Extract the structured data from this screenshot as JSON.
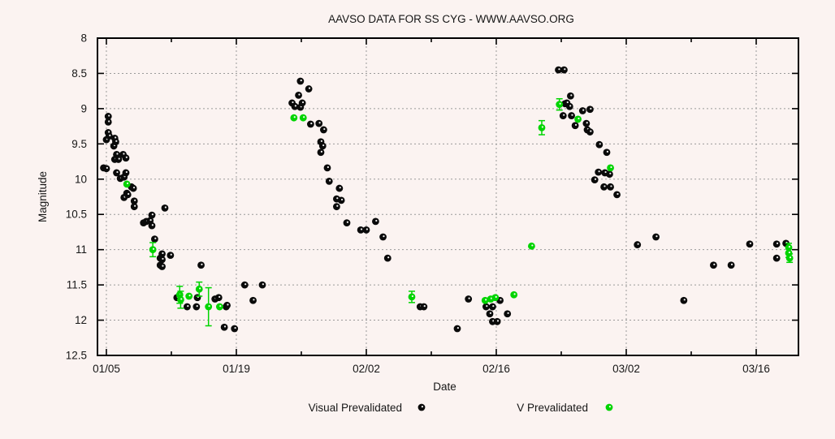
{
  "page": {
    "background": "#fbf3f1",
    "plot_border_color": "#000000",
    "grid_color": "#9a9a9a"
  },
  "chart_data": {
    "type": "scatter",
    "title": "AAVSO DATA FOR SS CYG - WWW.AAVSO.ORG",
    "xlabel": "Date",
    "ylabel": "Magnitude",
    "grid": true,
    "y_axis": {
      "min": 8,
      "max": 12.5,
      "step": 0.5,
      "inverted": true,
      "tick_labels": [
        "8",
        "8.5",
        "9",
        "9.5",
        "10",
        "10.5",
        "11",
        "11.5",
        "12",
        "12.5"
      ],
      "tick_values": [
        8,
        8.5,
        9,
        9.5,
        10,
        10.5,
        11,
        11.5,
        12,
        12.5
      ]
    },
    "x_axis": {
      "unit": "days since 01/05",
      "range_days": [
        -0.96,
        74.55
      ],
      "major_tick_days": [
        0,
        14,
        28,
        42,
        56,
        70
      ],
      "tick_labels": [
        "01/05",
        "01/19",
        "02/02",
        "02/16",
        "03/02",
        "03/16"
      ],
      "minor_tick_days": [
        7,
        21,
        35,
        49,
        63
      ]
    },
    "legend": {
      "position": "below-x-axis",
      "entries": [
        {
          "label": "Visual Prevalidated",
          "color": "#0a0a0a"
        },
        {
          "label": "V Prevalidated",
          "color": "#00d400"
        }
      ]
    },
    "series": [
      {
        "name": "Visual Prevalidated",
        "color": "#0a0a0a",
        "marker": "circle",
        "points_day_mag": [
          [
            -0.3,
            9.84
          ],
          [
            0.0,
            9.85
          ],
          [
            0.0,
            9.44
          ],
          [
            0.2,
            9.11
          ],
          [
            0.2,
            9.19
          ],
          [
            0.2,
            9.34
          ],
          [
            0.3,
            9.39
          ],
          [
            0.8,
            9.53
          ],
          [
            0.9,
            9.42
          ],
          [
            0.9,
            9.72
          ],
          [
            1.0,
            9.47
          ],
          [
            1.1,
            9.65
          ],
          [
            1.1,
            9.91
          ],
          [
            1.3,
            9.72
          ],
          [
            1.5,
            9.99
          ],
          [
            1.8,
            9.65
          ],
          [
            1.9,
            9.97
          ],
          [
            1.9,
            10.26
          ],
          [
            2.1,
            9.7
          ],
          [
            2.1,
            9.91
          ],
          [
            2.2,
            10.2
          ],
          [
            2.3,
            10.22
          ],
          [
            2.7,
            10.11
          ],
          [
            2.9,
            10.13
          ],
          [
            3.0,
            10.31
          ],
          [
            3.0,
            10.39
          ],
          [
            4.0,
            10.62
          ],
          [
            4.3,
            10.6
          ],
          [
            4.7,
            10.59
          ],
          [
            4.9,
            10.51
          ],
          [
            4.9,
            10.66
          ],
          [
            5.2,
            10.85
          ],
          [
            5.8,
            11.12
          ],
          [
            5.8,
            11.22
          ],
          [
            6.0,
            11.06
          ],
          [
            6.0,
            11.14
          ],
          [
            6.0,
            11.24
          ],
          [
            6.3,
            10.41
          ],
          [
            6.9,
            11.08
          ],
          [
            7.6,
            11.68
          ],
          [
            8.7,
            11.81
          ],
          [
            9.7,
            11.81
          ],
          [
            9.8,
            11.68
          ],
          [
            10.2,
            11.22
          ],
          [
            11.7,
            11.7
          ],
          [
            12.1,
            11.68
          ],
          [
            12.7,
            12.1
          ],
          [
            12.9,
            11.81
          ],
          [
            13.0,
            11.79
          ],
          [
            13.8,
            12.12
          ],
          [
            14.9,
            11.5
          ],
          [
            15.8,
            11.72
          ],
          [
            16.8,
            11.5
          ],
          [
            20.0,
            8.92
          ],
          [
            20.3,
            8.97
          ],
          [
            20.7,
            8.81
          ],
          [
            20.9,
            8.61
          ],
          [
            20.9,
            8.98
          ],
          [
            21.1,
            8.92
          ],
          [
            21.8,
            8.72
          ],
          [
            22.0,
            9.22
          ],
          [
            22.9,
            9.21
          ],
          [
            23.1,
            9.47
          ],
          [
            23.1,
            9.62
          ],
          [
            23.3,
            9.53
          ],
          [
            23.4,
            9.3
          ],
          [
            23.8,
            9.84
          ],
          [
            24.0,
            10.03
          ],
          [
            24.8,
            10.28
          ],
          [
            24.8,
            10.39
          ],
          [
            25.1,
            10.13
          ],
          [
            25.3,
            10.3
          ],
          [
            25.9,
            10.62
          ],
          [
            27.4,
            10.72
          ],
          [
            28.0,
            10.72
          ],
          [
            29.0,
            10.6
          ],
          [
            29.8,
            10.82
          ],
          [
            30.3,
            11.12
          ],
          [
            33.8,
            11.81
          ],
          [
            34.2,
            11.81
          ],
          [
            37.8,
            12.12
          ],
          [
            39.0,
            11.7
          ],
          [
            40.9,
            11.81
          ],
          [
            41.3,
            11.91
          ],
          [
            41.6,
            11.81
          ],
          [
            41.6,
            12.02
          ],
          [
            42.1,
            12.02
          ],
          [
            42.4,
            11.72
          ],
          [
            43.2,
            11.91
          ],
          [
            48.7,
            8.45
          ],
          [
            49.3,
            8.45
          ],
          [
            49.2,
            9.1
          ],
          [
            49.4,
            8.93
          ],
          [
            49.6,
            8.92
          ],
          [
            49.9,
            8.97
          ],
          [
            50.0,
            8.82
          ],
          [
            50.1,
            9.1
          ],
          [
            50.5,
            9.24
          ],
          [
            51.3,
            9.03
          ],
          [
            51.7,
            9.21
          ],
          [
            51.8,
            9.3
          ],
          [
            52.1,
            9.01
          ],
          [
            52.1,
            9.33
          ],
          [
            52.6,
            10.01
          ],
          [
            53.0,
            9.9
          ],
          [
            53.1,
            9.51
          ],
          [
            53.6,
            10.11
          ],
          [
            53.7,
            9.91
          ],
          [
            53.9,
            9.62
          ],
          [
            54.2,
            9.93
          ],
          [
            54.3,
            10.11
          ],
          [
            55.0,
            10.22
          ],
          [
            57.2,
            10.93
          ],
          [
            59.2,
            10.82
          ],
          [
            62.2,
            11.72
          ],
          [
            65.4,
            11.22
          ],
          [
            67.3,
            11.22
          ],
          [
            69.3,
            10.92
          ],
          [
            72.2,
            10.92
          ],
          [
            72.2,
            11.12
          ],
          [
            73.2,
            10.91
          ]
        ]
      },
      {
        "name": "V Prevalidated",
        "color": "#00d400",
        "marker": "circle",
        "points_day_mag_err": [
          [
            2.2,
            10.07,
            0
          ],
          [
            5.0,
            11.0,
            0.1
          ],
          [
            7.9,
            11.64,
            0.12
          ],
          [
            8.0,
            11.71,
            0.12
          ],
          [
            8.9,
            11.66,
            0
          ],
          [
            10.0,
            11.56,
            0.1
          ],
          [
            11.0,
            11.81,
            0.27
          ],
          [
            12.2,
            11.81,
            0
          ],
          [
            20.2,
            9.13,
            0
          ],
          [
            21.2,
            9.13,
            0
          ],
          [
            32.9,
            11.67,
            0.08
          ],
          [
            40.8,
            11.72,
            0
          ],
          [
            41.4,
            11.7,
            0
          ],
          [
            41.9,
            11.68,
            0
          ],
          [
            43.9,
            11.64,
            0
          ],
          [
            45.8,
            10.95,
            0
          ],
          [
            46.9,
            9.27,
            0.1
          ],
          [
            48.8,
            8.94,
            0.08
          ],
          [
            50.8,
            9.15,
            0
          ],
          [
            54.3,
            9.84,
            0
          ],
          [
            73.5,
            10.97,
            0.06
          ],
          [
            73.5,
            11.05,
            0.06
          ],
          [
            73.6,
            11.12,
            0.06
          ]
        ]
      }
    ]
  }
}
